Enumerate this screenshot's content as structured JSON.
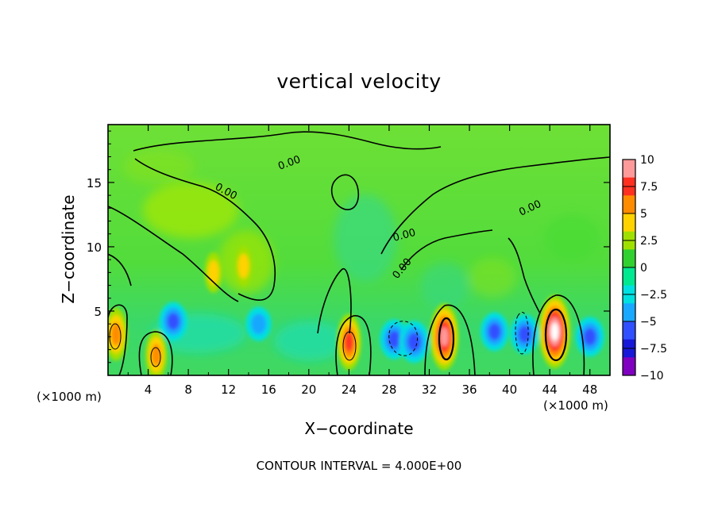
{
  "chart_data": {
    "type": "heatmap",
    "title": "vertical velocity",
    "xlabel": "X−coordinate",
    "ylabel": "Z−coordinate",
    "x_unit_label": "(×1000 m)",
    "xlim": [
      0,
      50
    ],
    "ylim": [
      0,
      19.5
    ],
    "x_ticks": [
      4,
      8,
      12,
      16,
      20,
      24,
      28,
      32,
      36,
      40,
      44,
      48
    ],
    "y_ticks": [
      5,
      10,
      15
    ],
    "colorbar": {
      "range": [
        -10,
        10
      ],
      "ticks": [
        "10",
        "7.5",
        "5",
        "2.5",
        "0",
        "−2.5",
        "−5",
        "−7.5",
        "−10"
      ],
      "colors": [
        "#ff9a9a",
        "#ff3020",
        "#ff8c00",
        "#ffd200",
        "#a0e000",
        "#30d030",
        "#00e890",
        "#00e0e0",
        "#18a8ff",
        "#3050ff",
        "#1818d8",
        "#8000c0"
      ]
    },
    "contour_interval_text": "CONTOUR INTERVAL = 4.000E+00",
    "contour_labels": [
      "0.00",
      "0.00",
      "0.00",
      "0.00",
      "0.00"
    ],
    "cells": [
      {
        "x": 0.8,
        "z": 3.2,
        "w": 6.0,
        "kind": "updraft"
      },
      {
        "x": 4.8,
        "z": 1.6,
        "w": 5.0,
        "kind": "updraft"
      },
      {
        "x": 6.5,
        "z": 4.2,
        "w": -4.5,
        "kind": "downdraft"
      },
      {
        "x": 10.5,
        "z": 8.0,
        "w": 2.5,
        "kind": "updraft"
      },
      {
        "x": 13.5,
        "z": 8.5,
        "w": 2.5,
        "kind": "updraft"
      },
      {
        "x": 15.0,
        "z": 4.0,
        "w": -2.5,
        "kind": "downdraft"
      },
      {
        "x": 24.0,
        "z": 2.6,
        "w": 7.0,
        "kind": "updraft"
      },
      {
        "x": 28.5,
        "z": 2.8,
        "w": -5.0,
        "kind": "downdraft"
      },
      {
        "x": 30.5,
        "z": 2.6,
        "w": -6.0,
        "kind": "downdraft"
      },
      {
        "x": 33.5,
        "z": 3.0,
        "w": 10.0,
        "kind": "updraft"
      },
      {
        "x": 38.5,
        "z": 3.4,
        "w": -4.5,
        "kind": "downdraft"
      },
      {
        "x": 41.5,
        "z": 3.2,
        "w": -5.0,
        "kind": "downdraft"
      },
      {
        "x": 44.5,
        "z": 3.4,
        "w": 12.0,
        "kind": "updraft"
      },
      {
        "x": 48.0,
        "z": 3.0,
        "w": -5.0,
        "kind": "downdraft"
      }
    ]
  }
}
